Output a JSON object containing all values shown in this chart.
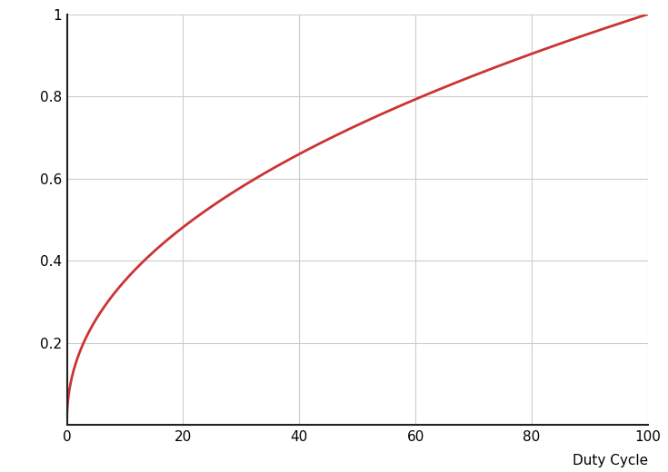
{
  "xlabel": "Duty Cycle",
  "ylabel": "",
  "xlim": [
    0,
    100
  ],
  "ylim": [
    0,
    1
  ],
  "xticks": [
    0,
    20,
    40,
    60,
    80,
    100
  ],
  "yticks": [
    0.2,
    0.4,
    0.6,
    0.8,
    1.0
  ],
  "ytick_labels": [
    "0.2",
    "0.4",
    "0.6",
    "0.8",
    "1"
  ],
  "xtick_labels": [
    "0",
    "20",
    "40",
    "60",
    "80",
    "100"
  ],
  "line_color": "#cc3333",
  "line_width": 2.0,
  "gamma": 2.2,
  "grid_color": "#cccccc",
  "grid_linewidth": 0.8,
  "background_color": "#ffffff",
  "figure_width": 7.35,
  "figure_height": 5.2,
  "dpi": 100,
  "xlabel_fontsize": 11,
  "tick_fontsize": 11,
  "spine_color": "#222222",
  "spine_linewidth": 1.5
}
